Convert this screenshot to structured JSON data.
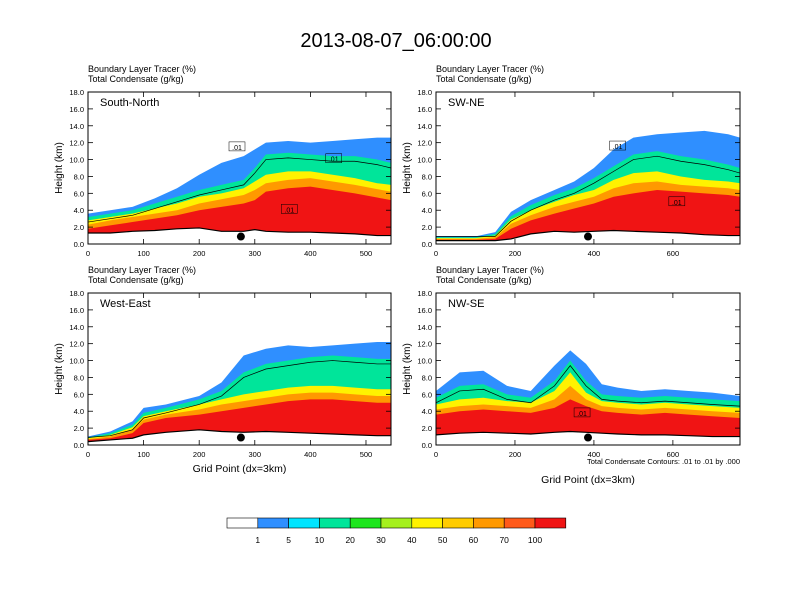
{
  "title": "2013-08-07_06:00:00",
  "note": "Total Condensate Contours: .01 to .01 by .000",
  "colorbar": {
    "labels": [
      "1",
      "5",
      "10",
      "20",
      "30",
      "40",
      "50",
      "60",
      "70",
      "100"
    ],
    "colors": [
      "#ffffff",
      "#2f8fff",
      "#00e5ff",
      "#00e59a",
      "#1ee61e",
      "#a5f01e",
      "#fff200",
      "#ffcc00",
      "#ff9900",
      "#ff5a1a",
      "#f01414"
    ]
  },
  "chart_data": [
    {
      "type": "heatmap",
      "panel_label": "South-North",
      "header_lines": [
        "Boundary Layer Tracer   (%)",
        "Total Condensate   (g/kg)"
      ],
      "ylabel": "Height (km)",
      "xlabel": "",
      "ylim": [
        0,
        18
      ],
      "yticks": [
        "0.0",
        "2.0",
        "4.0",
        "6.0",
        "8.0",
        "10.0",
        "12.0",
        "14.0",
        "16.0",
        "18.0"
      ],
      "xlim": [
        0,
        545
      ],
      "xticks": [
        0,
        100,
        200,
        300,
        400,
        500
      ],
      "marker_x": 275,
      "marker_y": 1.0,
      "contour_labels": [
        {
          "x": 268,
          "y": 11.5,
          "text": ".01"
        },
        {
          "x": 442,
          "y": 10.1,
          "text": ".01"
        },
        {
          "x": 362,
          "y": 4.1,
          "text": ".01"
        }
      ],
      "profile": {
        "x": [
          0,
          40,
          80,
          120,
          160,
          200,
          240,
          280,
          300,
          320,
          360,
          400,
          440,
          480,
          520,
          545
        ],
        "terrain": [
          1.3,
          1.3,
          1.5,
          1.6,
          1.8,
          1.9,
          1.5,
          1.5,
          1.7,
          1.5,
          1.4,
          1.4,
          1.3,
          1.2,
          1.0,
          1.0
        ],
        "red_top": [
          1.8,
          2.2,
          2.6,
          3.0,
          3.4,
          4.0,
          4.4,
          4.8,
          5.2,
          6.2,
          6.6,
          6.8,
          6.4,
          6.0,
          5.5,
          5.2
        ],
        "orange_top": [
          2.3,
          2.8,
          3.2,
          3.6,
          4.0,
          4.8,
          5.3,
          5.8,
          6.4,
          7.2,
          7.6,
          7.8,
          7.4,
          7.0,
          6.5,
          6.2
        ],
        "yellow_top": [
          2.8,
          3.2,
          3.6,
          4.2,
          4.8,
          5.6,
          6.0,
          6.6,
          7.4,
          8.2,
          8.6,
          8.6,
          8.2,
          7.8,
          7.2,
          7.0
        ],
        "green_top": [
          3.2,
          3.6,
          4.0,
          4.8,
          5.6,
          6.4,
          7.0,
          7.6,
          9.0,
          10.6,
          10.8,
          10.6,
          10.4,
          10.4,
          10.0,
          9.6
        ],
        "blue_top": [
          3.6,
          4.0,
          4.4,
          5.4,
          6.6,
          8.2,
          9.6,
          10.4,
          11.2,
          12.0,
          12.2,
          12.0,
          12.2,
          12.4,
          12.6,
          12.6
        ]
      }
    },
    {
      "type": "heatmap",
      "panel_label": "SW-NE",
      "header_lines": [
        "Boundary Layer Tracer   (%)",
        "Total Condensate   (g/kg)"
      ],
      "ylabel": "Height (km)",
      "xlabel": "",
      "ylim": [
        0,
        18
      ],
      "yticks": [
        "0.0",
        "2.0",
        "4.0",
        "6.0",
        "8.0",
        "10.0",
        "12.0",
        "14.0",
        "16.0",
        "18.0"
      ],
      "xlim": [
        0,
        770
      ],
      "xticks": [
        0,
        200,
        400,
        600
      ],
      "marker_x": 385,
      "marker_y": 1.0,
      "contour_labels": [
        {
          "x": 460,
          "y": 11.6,
          "text": ".01"
        },
        {
          "x": 610,
          "y": 5.0,
          "text": ".01"
        }
      ],
      "profile": {
        "x": [
          0,
          100,
          150,
          190,
          240,
          300,
          350,
          400,
          450,
          500,
          560,
          620,
          680,
          740,
          770
        ],
        "terrain": [
          0.4,
          0.4,
          0.4,
          0.6,
          1.2,
          1.5,
          1.4,
          1.5,
          1.6,
          1.5,
          1.4,
          1.3,
          1.1,
          1.0,
          1.0
        ],
        "red_top": [
          0.5,
          0.5,
          0.6,
          1.8,
          2.8,
          3.6,
          4.2,
          4.8,
          5.6,
          6.0,
          6.4,
          6.2,
          6.0,
          5.8,
          5.6
        ],
        "orange_top": [
          0.6,
          0.6,
          0.8,
          2.4,
          3.4,
          4.4,
          5.0,
          5.6,
          6.6,
          7.2,
          7.4,
          7.0,
          6.8,
          6.6,
          6.4
        ],
        "yellow_top": [
          0.7,
          0.7,
          1.0,
          2.9,
          4.0,
          5.0,
          5.8,
          6.4,
          7.6,
          8.4,
          8.6,
          8.0,
          7.6,
          7.4,
          7.2
        ],
        "green_top": [
          0.8,
          0.8,
          1.2,
          3.3,
          4.6,
          5.8,
          6.6,
          7.8,
          9.2,
          10.6,
          11.0,
          10.4,
          10.0,
          9.4,
          9.0
        ],
        "blue_top": [
          0.9,
          0.9,
          1.4,
          3.8,
          5.2,
          6.4,
          7.4,
          9.0,
          11.2,
          12.6,
          13.0,
          13.2,
          13.4,
          13.0,
          12.6
        ]
      }
    },
    {
      "type": "heatmap",
      "panel_label": "West-East",
      "header_lines": [
        "Boundary Layer Tracer   (%)",
        "Total Condensate   (g/kg)"
      ],
      "ylabel": "Height (km)",
      "xlabel": "Grid Point (dx=3km)",
      "ylim": [
        0,
        18
      ],
      "yticks": [
        "0.0",
        "2.0",
        "4.0",
        "6.0",
        "8.0",
        "10.0",
        "12.0",
        "14.0",
        "16.0",
        "18.0"
      ],
      "xlim": [
        0,
        545
      ],
      "xticks": [
        0,
        100,
        200,
        300,
        400,
        500
      ],
      "marker_x": 275,
      "marker_y": 1.0,
      "contour_labels": [],
      "profile": {
        "x": [
          0,
          40,
          80,
          100,
          140,
          200,
          240,
          280,
          320,
          360,
          400,
          440,
          480,
          520,
          545
        ],
        "terrain": [
          0.4,
          0.6,
          0.8,
          1.2,
          1.5,
          1.8,
          1.6,
          1.5,
          1.6,
          1.5,
          1.4,
          1.3,
          1.2,
          1.1,
          1.1
        ],
        "red_top": [
          0.6,
          0.8,
          1.4,
          2.6,
          3.2,
          3.6,
          4.0,
          4.4,
          4.8,
          5.2,
          5.4,
          5.4,
          5.2,
          5.0,
          5.0
        ],
        "orange_top": [
          0.7,
          1.0,
          1.8,
          3.0,
          3.6,
          4.2,
          4.8,
          5.2,
          5.6,
          6.0,
          6.2,
          6.2,
          6.0,
          5.8,
          5.8
        ],
        "yellow_top": [
          0.8,
          1.2,
          2.1,
          3.4,
          4.0,
          4.8,
          5.4,
          6.0,
          6.4,
          6.8,
          7.0,
          7.0,
          6.8,
          6.6,
          6.6
        ],
        "green_top": [
          0.9,
          1.4,
          2.4,
          3.8,
          4.4,
          5.4,
          6.4,
          8.6,
          9.6,
          10.0,
          10.4,
          10.6,
          10.4,
          10.2,
          10.2
        ],
        "blue_top": [
          1.0,
          1.6,
          2.8,
          4.4,
          4.8,
          5.8,
          7.4,
          10.6,
          11.4,
          11.8,
          11.6,
          11.8,
          12.0,
          12.2,
          12.2
        ]
      }
    },
    {
      "type": "heatmap",
      "panel_label": "NW-SE",
      "header_lines": [
        "Boundary Layer Tracer   (%)",
        "Total Condensate   (g/kg)"
      ],
      "ylabel": "Height (km)",
      "xlabel": "Grid Point (dx=3km)",
      "ylim": [
        0,
        18
      ],
      "yticks": [
        "0.0",
        "2.0",
        "4.0",
        "6.0",
        "8.0",
        "10.0",
        "12.0",
        "14.0",
        "16.0",
        "18.0"
      ],
      "xlim": [
        0,
        770
      ],
      "xticks": [
        0,
        200,
        400,
        600
      ],
      "marker_x": 385,
      "marker_y": 1.0,
      "contour_labels": [
        {
          "x": 370,
          "y": 3.8,
          "text": ".01"
        }
      ],
      "profile": {
        "x": [
          0,
          60,
          120,
          180,
          240,
          300,
          340,
          380,
          420,
          460,
          520,
          580,
          640,
          700,
          770
        ],
        "terrain": [
          1.2,
          1.4,
          1.5,
          1.4,
          1.3,
          1.5,
          1.6,
          1.5,
          1.4,
          1.3,
          1.2,
          1.2,
          1.1,
          1.0,
          1.0
        ],
        "red_top": [
          3.6,
          4.0,
          4.2,
          4.0,
          3.8,
          4.4,
          5.4,
          4.6,
          4.0,
          3.8,
          3.6,
          3.8,
          3.6,
          3.4,
          3.2
        ],
        "orange_top": [
          4.2,
          4.6,
          4.8,
          4.6,
          4.4,
          5.4,
          7.0,
          5.4,
          4.6,
          4.4,
          4.2,
          4.4,
          4.2,
          4.0,
          3.8
        ],
        "yellow_top": [
          4.8,
          5.4,
          5.6,
          5.2,
          5.0,
          6.4,
          8.6,
          6.2,
          5.2,
          5.0,
          4.8,
          5.0,
          4.8,
          4.6,
          4.4
        ],
        "green_top": [
          5.6,
          7.0,
          7.2,
          6.0,
          5.6,
          7.6,
          10.0,
          7.6,
          6.0,
          5.8,
          5.6,
          5.8,
          5.6,
          5.4,
          5.2
        ],
        "blue_top": [
          6.4,
          8.6,
          8.8,
          7.0,
          6.4,
          9.4,
          11.2,
          9.6,
          7.2,
          6.8,
          6.4,
          6.6,
          6.4,
          6.2,
          5.8
        ]
      }
    }
  ]
}
